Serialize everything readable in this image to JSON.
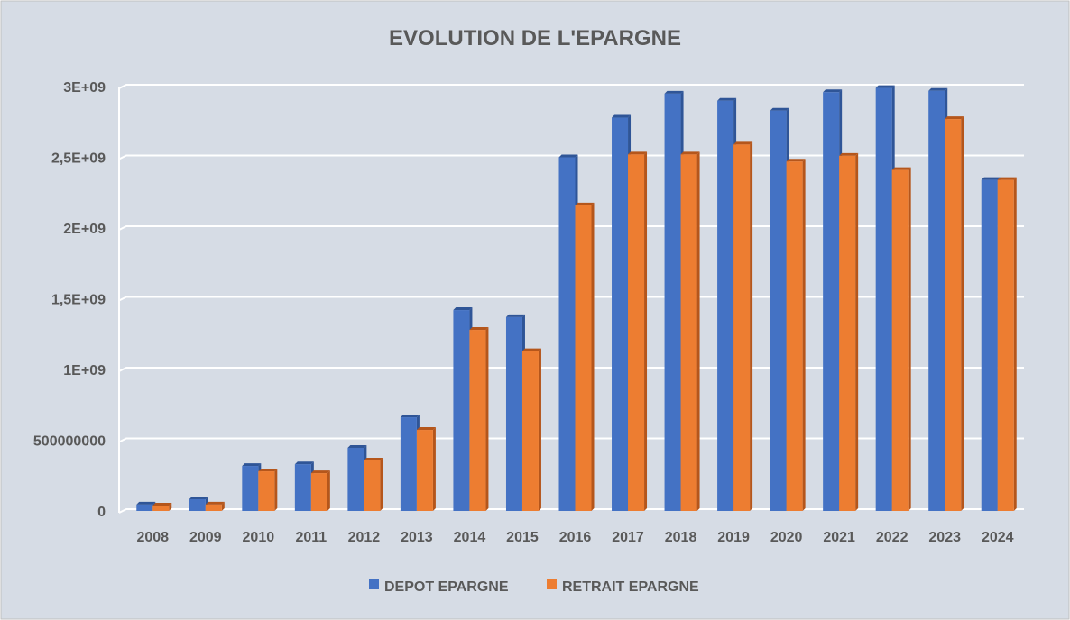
{
  "chart_data": {
    "type": "bar",
    "title": "EVOLUTION DE L'EPARGNE",
    "xlabel": "",
    "ylabel": "",
    "categories": [
      "2008",
      "2009",
      "2010",
      "2011",
      "2012",
      "2013",
      "2014",
      "2015",
      "2016",
      "2017",
      "2018",
      "2019",
      "2020",
      "2021",
      "2022",
      "2023",
      "2024"
    ],
    "series": [
      {
        "name": "DEPOT EPARGNE",
        "color": "#4472C4",
        "values": [
          45000000,
          83000000,
          318000000,
          330000000,
          446000000,
          662000000,
          1420000000,
          1370000000,
          2500000000,
          2780000000,
          2950000000,
          2900000000,
          2830000000,
          2960000000,
          2990000000,
          2970000000,
          2340000000
        ]
      },
      {
        "name": "RETRAIT EPARGNE",
        "color": "#ED7D31",
        "values": [
          38000000,
          45000000,
          280000000,
          267000000,
          357000000,
          573000000,
          1280000000,
          1130000000,
          2160000000,
          2520000000,
          2520000000,
          2590000000,
          2470000000,
          2510000000,
          2410000000,
          2770000000,
          2340000000
        ]
      }
    ],
    "ylim": [
      0,
      3000000000
    ],
    "yticks": [
      0,
      500000000,
      1000000000,
      1500000000,
      2000000000,
      2500000000,
      3000000000
    ],
    "ytick_labels": [
      "0",
      "500000000",
      "1E+09",
      "1,5E+09",
      "2E+09",
      "2,5E+09",
      "3E+09"
    ],
    "grid": true,
    "legend_position": "bottom",
    "background": "#D6DCE5"
  }
}
